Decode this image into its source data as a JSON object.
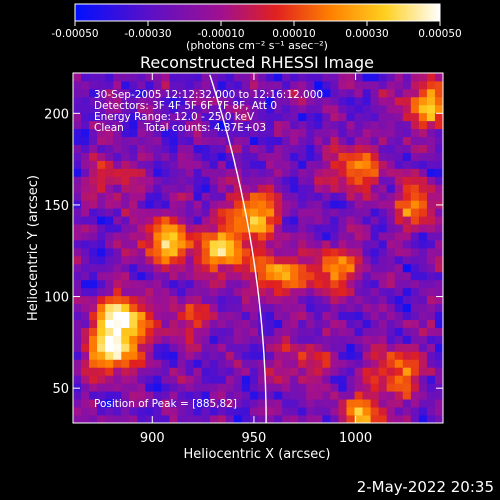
{
  "chart_data": {
    "type": "heatmap",
    "title": "Reconstructed RHESSI Image",
    "xlabel": "Heliocentric X (arcsec)",
    "ylabel": "Heliocentric Y (arcsec)",
    "xlim": [
      861,
      1043
    ],
    "ylim": [
      31,
      222
    ],
    "x_ticks": [
      900,
      950,
      1000
    ],
    "y_ticks": [
      50,
      100,
      150,
      200
    ],
    "colorbar": {
      "label": "(photons cm⁻² s⁻¹ asec⁻²)",
      "range": [
        -0.0005,
        0.0005
      ],
      "ticks": [
        "-0.00050",
        "-0.00030",
        "-0.00010",
        "0.00010",
        "0.00030",
        "0.00050"
      ],
      "colors": [
        "#0010ff",
        "#5a10c8",
        "#a01090",
        "#e02020",
        "#ff8000",
        "#ffd020",
        "#ffffff"
      ]
    },
    "annotations": {
      "time": "30-Sep-2005 12:12:32.000 to 12:16:12.000",
      "detectors": "Detectors: 3F 4F 5F 6F 7F 8F, Att 0",
      "energy": "Energy Range: 12.0 - 25.0 keV",
      "algorithm": "Clean",
      "counts": "Total counts: 4.37E+03",
      "peak": "Position of Peak = [885,82]"
    },
    "limb_arc": true,
    "sources": [
      {
        "x": 885,
        "y": 88,
        "peak": 1.0
      },
      {
        "x": 880,
        "y": 70,
        "peak": 0.85
      },
      {
        "x": 907,
        "y": 130,
        "peak": 0.8
      },
      {
        "x": 935,
        "y": 125,
        "peak": 0.75
      },
      {
        "x": 950,
        "y": 145,
        "peak": 0.75
      },
      {
        "x": 962,
        "y": 112,
        "peak": 0.65
      },
      {
        "x": 990,
        "y": 115,
        "peak": 0.6
      },
      {
        "x": 1000,
        "y": 170,
        "peak": 0.6
      },
      {
        "x": 1035,
        "y": 205,
        "peak": 0.7
      },
      {
        "x": 1030,
        "y": 150,
        "peak": 0.55
      },
      {
        "x": 1020,
        "y": 60,
        "peak": 0.6
      },
      {
        "x": 1003,
        "y": 35,
        "peak": 0.6
      },
      {
        "x": 880,
        "y": 165,
        "peak": 0.35
      },
      {
        "x": 918,
        "y": 88,
        "peak": 0.35
      },
      {
        "x": 975,
        "y": 65,
        "peak": 0.35
      }
    ]
  },
  "footer": {
    "timestamp": "2-May-2022 20:35"
  }
}
